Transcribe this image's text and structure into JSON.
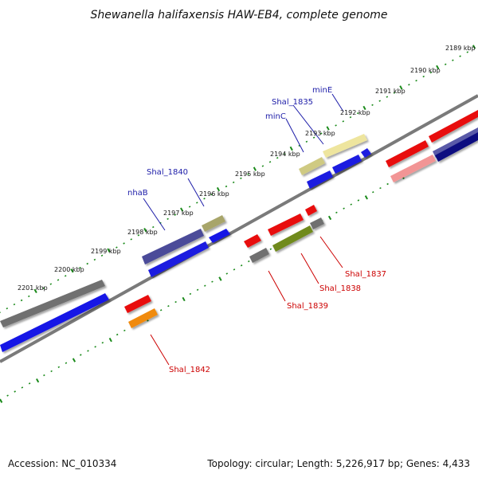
{
  "title": "Shewanella halifaxensis HAW-EB4, complete genome",
  "footer": {
    "accession": "Accession: NC_010334",
    "stats": "Topology: circular; Length: 5,226,917 bp; Genes: 4,433"
  },
  "kbp_labels": [
    "2189 kbp",
    "2190 kbp",
    "2191 kbp",
    "2192 kbp",
    "2193 kbp",
    "2194 kbp",
    "2195 kbp",
    "2196 kbp",
    "2197 kbp",
    "2198 kbp",
    "2199 kbp",
    "2200 kbp",
    "2201 kbp"
  ],
  "gene_labels_top": [
    "minE",
    "Shal_1835",
    "minC",
    "Shal_1840",
    "nhaB"
  ],
  "gene_labels_bottom": [
    "Shal_1837",
    "Shal_1838",
    "Shal_1839",
    "Shal_1842"
  ],
  "colors": {
    "top_label": "#1c1ca8",
    "bottom_label": "#cc0000",
    "tick": "#1a8a1a",
    "backbone": "#8a8a8a"
  }
}
